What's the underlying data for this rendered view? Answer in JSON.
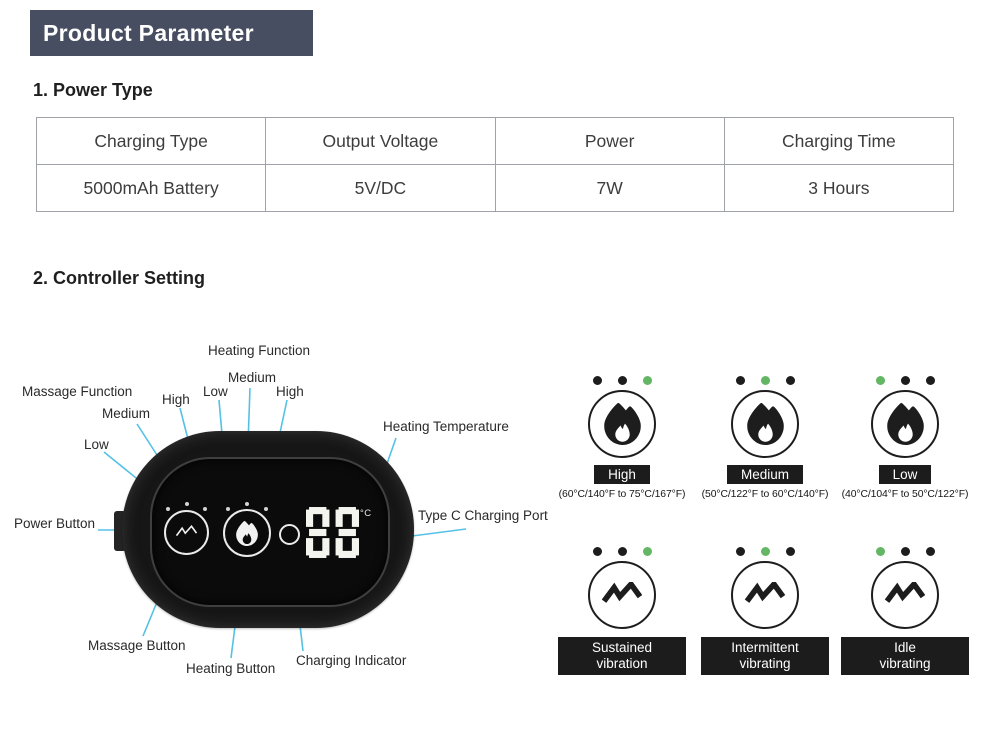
{
  "page_title": "Product Parameter",
  "sections": {
    "power_heading": "1. Power Type",
    "controller_heading": "2. Controller Setting"
  },
  "power_table": {
    "headers": [
      "Charging Type",
      "Output Voltage",
      "Power",
      "Charging Time"
    ],
    "values": [
      "5000mAh Battery",
      "5V/DC",
      "7W",
      "3 Hours"
    ]
  },
  "controller": {
    "labels": {
      "massage_function": "Massage Function",
      "massage_low": "Low",
      "massage_medium": "Medium",
      "massage_high": "High",
      "heating_function": "Heating Function",
      "heating_low": "Low",
      "heating_medium": "Medium",
      "heating_high": "High",
      "heating_temperature": "Heating Temperature",
      "power_button": "Power Button",
      "type_c_port": "Type C Charging Port",
      "massage_button": "Massage Button",
      "heating_button": "Heating Button",
      "charging_indicator": "Charging Indicator"
    },
    "display": {
      "value": "88",
      "unit": "°C"
    }
  },
  "modes": {
    "heat": [
      {
        "label": "High",
        "range": "(60°C/140°F to 75°C/167°F)",
        "dots": [
          "black",
          "black",
          "green"
        ]
      },
      {
        "label": "Medium",
        "range": "(50°C/122°F to 60°C/140°F)",
        "dots": [
          "black",
          "green",
          "black"
        ]
      },
      {
        "label": "Low",
        "range": "(40°C/104°F to 50°C/122°F)",
        "dots": [
          "green",
          "black",
          "black"
        ]
      }
    ],
    "vibration": [
      {
        "line1": "Sustained",
        "line2": "vibration",
        "dots": [
          "black",
          "black",
          "green"
        ]
      },
      {
        "line1": "Intermittent",
        "line2": "vibrating",
        "dots": [
          "black",
          "green",
          "black"
        ]
      },
      {
        "line1": "Idle",
        "line2": "vibrating",
        "dots": [
          "green",
          "black",
          "black"
        ]
      }
    ]
  },
  "colors": {
    "header_bg": "#484e62",
    "leader_line": "#55c1e5",
    "active_dot_green": "#63b663",
    "mode_bar_bg": "#1c1c1c"
  }
}
